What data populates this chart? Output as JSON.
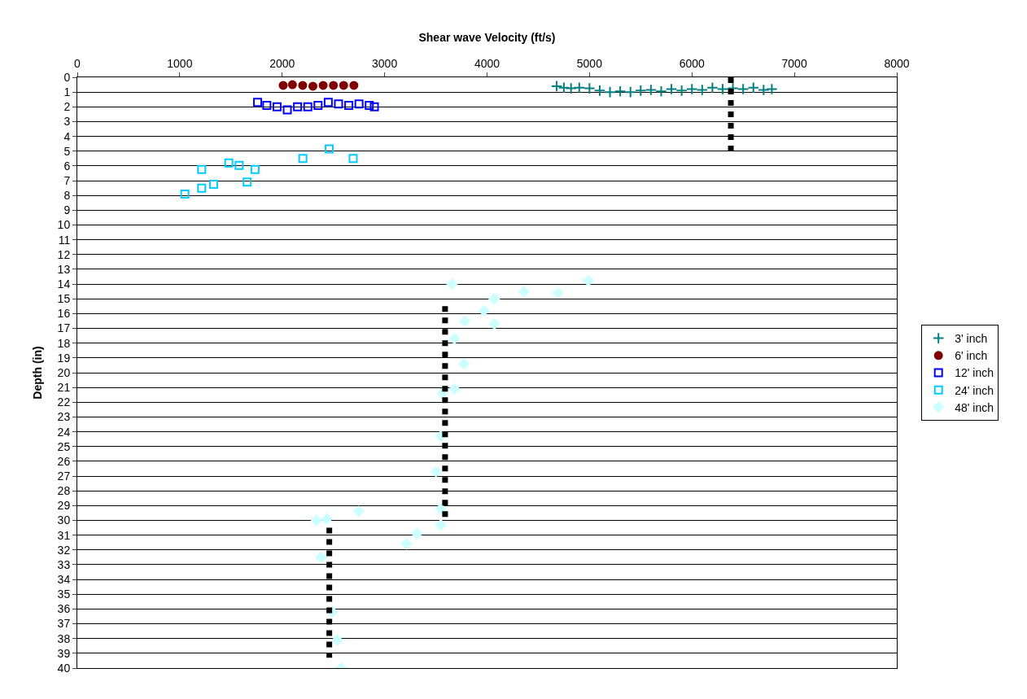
{
  "chart_data": {
    "type": "scatter",
    "xlabel": "Shear wave Velocity (ft/s)",
    "ylabel": "Depth (in)",
    "xlim": [
      0,
      8000
    ],
    "xticks": [
      0,
      1000,
      2000,
      3000,
      4000,
      5000,
      6000,
      7000,
      8000
    ],
    "ylim": [
      40,
      0
    ],
    "yticks": [
      0,
      1,
      2,
      3,
      4,
      5,
      6,
      7,
      8,
      9,
      10,
      11,
      12,
      13,
      14,
      15,
      16,
      17,
      18,
      19,
      20,
      21,
      22,
      23,
      24,
      25,
      26,
      27,
      28,
      29,
      30,
      31,
      32,
      33,
      34,
      35,
      36,
      37,
      38,
      39,
      40
    ],
    "grid": "y",
    "legend": "right",
    "series": [
      {
        "name": "3' inch",
        "color": "#008080",
        "marker": "cross",
        "x": [
          4680,
          4750,
          4820,
          4900,
          5000,
          5100,
          5200,
          5300,
          5400,
          5500,
          5600,
          5700,
          5800,
          5900,
          6000,
          6100,
          6200,
          6300,
          6400,
          6500,
          6600,
          6700,
          6780
        ],
        "values": [
          0.6,
          0.7,
          0.75,
          0.7,
          0.75,
          0.9,
          1.0,
          0.95,
          1.0,
          0.9,
          0.85,
          0.95,
          0.8,
          0.9,
          0.8,
          0.85,
          0.7,
          0.8,
          0.75,
          0.8,
          0.7,
          0.85,
          0.8
        ]
      },
      {
        "name": "6' inch",
        "color": "#800000",
        "marker": "circle",
        "x": [
          2010,
          2100,
          2200,
          2300,
          2400,
          2500,
          2600,
          2700
        ],
        "values": [
          0.55,
          0.5,
          0.55,
          0.6,
          0.55,
          0.55,
          0.55,
          0.55
        ]
      },
      {
        "name": "12' inch",
        "color": "#0000ff",
        "marker": "square",
        "x": [
          1760,
          1850,
          1950,
          2050,
          2150,
          2250,
          2350,
          2450,
          2550,
          2650,
          2750,
          2850,
          2900
        ],
        "values": [
          1.7,
          1.9,
          2.0,
          2.2,
          2.0,
          2.0,
          1.9,
          1.7,
          1.8,
          1.9,
          1.8,
          1.9,
          2.0
        ]
      },
      {
        "name": "24' inch",
        "color": "#00ccff",
        "marker": "square",
        "x": [
          1050,
          1214,
          1331,
          1214,
          1479,
          1658,
          1580,
          1735,
          2202,
          2459,
          2693
        ],
        "values": [
          7.9,
          7.5,
          7.24,
          6.24,
          5.8,
          7.1,
          5.96,
          6.24,
          5.5,
          4.85,
          5.5
        ]
      },
      {
        "name": "48' inch",
        "color": "#ccffff",
        "marker": "diamond",
        "x": [
          4988,
          4693,
          4358,
          4070,
          3658,
          3969,
          4070,
          3782,
          3681,
          3774,
          3681,
          3564,
          3549,
          3502,
          3549,
          3549,
          3315,
          3214,
          2747,
          2436,
          2335,
          2381,
          2490,
          2537,
          2576
        ],
        "values": [
          13.76,
          14.6,
          14.5,
          15.0,
          14.0,
          15.8,
          16.7,
          16.5,
          17.7,
          19.4,
          21.1,
          21.4,
          24.3,
          26.7,
          29.2,
          30.3,
          30.9,
          31.6,
          29.4,
          29.9,
          30.0,
          32.5,
          36.2,
          38.1,
          40
        ]
      },
      {
        "type": "line",
        "color": "#000000",
        "line_style": "dotted",
        "x": [
          6380,
          6380
        ],
        "values": [
          0,
          5.3
        ]
      },
      {
        "type": "line",
        "color": "#000000",
        "line_style": "dotted",
        "x": [
          3590,
          3590
        ],
        "values": [
          15.5,
          30.0
        ]
      },
      {
        "type": "line",
        "color": "#000000",
        "line_style": "dotted",
        "x": [
          2460,
          2460
        ],
        "values": [
          30.5,
          39.3
        ]
      }
    ]
  }
}
